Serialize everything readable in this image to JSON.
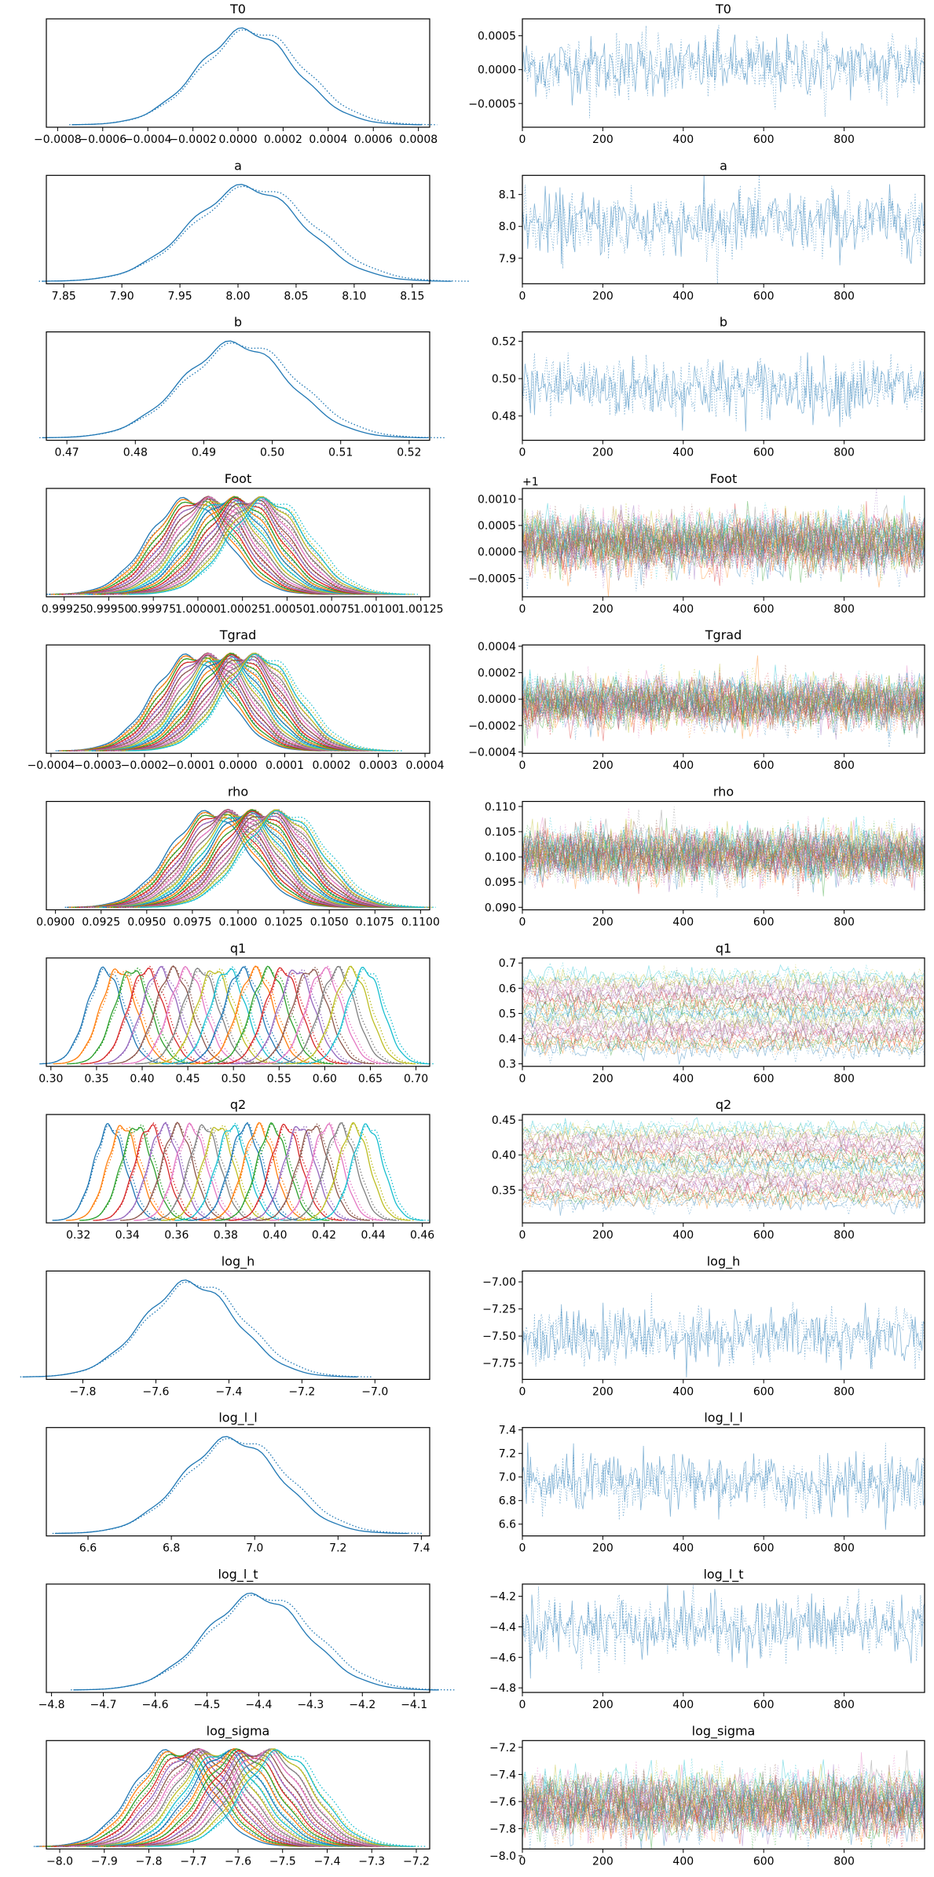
{
  "figure": {
    "type": "trace plot",
    "layout": "12 rows x 2 columns; left column: posterior density (KDE) per variable, right column: sampling trace per variable",
    "colors": [
      "#1f77b4",
      "#ff7f0e",
      "#2ca02c",
      "#d62728",
      "#9467bd",
      "#8c564b",
      "#e377c2",
      "#7f7f7f",
      "#bcbd22",
      "#17becf"
    ],
    "line_styles": {
      "chain_0": "solid",
      "chain_1": "dotted"
    },
    "trace_x_ticks": [
      "0",
      "200",
      "400",
      "600",
      "800"
    ],
    "trace_x_range": [
      0,
      1000
    ]
  },
  "chart_data": [
    {
      "name": "T0",
      "title": "T0",
      "components": 1,
      "mean": 5e-05,
      "sd": 0.00022,
      "kde": {
        "type": "line",
        "xlim": [
          -0.00085,
          0.00085
        ],
        "x_ticks": [
          "−0.0008",
          "−0.0006",
          "−0.0004",
          "−0.0002",
          "0.0000",
          "0.0002",
          "0.0004",
          "0.0006",
          "0.0008"
        ],
        "x_tick_values": [
          -0.0008,
          -0.0006,
          -0.0004,
          -0.0002,
          0,
          0.0002,
          0.0004,
          0.0006,
          0.0008
        ],
        "grid": false
      },
      "trace": {
        "type": "line",
        "ylim": [
          -0.00085,
          0.00075
        ],
        "y_ticks": [
          "0.0005",
          "0.0000",
          "−0.0005"
        ],
        "y_tick_values": [
          0.0005,
          0,
          -0.0005
        ],
        "offset_label": ""
      }
    },
    {
      "name": "a",
      "title": "a",
      "components": 1,
      "mean": 8.01,
      "sd": 0.05,
      "kde": {
        "type": "line",
        "xlim": [
          7.835,
          8.165
        ],
        "x_ticks": [
          "7.85",
          "7.90",
          "7.95",
          "8.00",
          "8.05",
          "8.10",
          "8.15"
        ],
        "x_tick_values": [
          7.85,
          7.9,
          7.95,
          8.0,
          8.05,
          8.1,
          8.15
        ],
        "grid": false
      },
      "trace": {
        "type": "line",
        "ylim": [
          7.82,
          8.16
        ],
        "y_ticks": [
          "8.1",
          "8.0",
          "7.9"
        ],
        "y_tick_values": [
          8.1,
          8.0,
          7.9
        ],
        "offset_label": ""
      }
    },
    {
      "name": "b",
      "title": "b",
      "components": 1,
      "mean": 0.495,
      "sd": 0.008,
      "kde": {
        "type": "line",
        "xlim": [
          0.467,
          0.523
        ],
        "x_ticks": [
          "0.47",
          "0.48",
          "0.49",
          "0.50",
          "0.51",
          "0.52"
        ],
        "x_tick_values": [
          0.47,
          0.48,
          0.49,
          0.5,
          0.51,
          0.52
        ],
        "grid": false
      },
      "trace": {
        "type": "line",
        "ylim": [
          0.467,
          0.525
        ],
        "y_ticks": [
          "0.52",
          "0.50",
          "0.48"
        ],
        "y_tick_values": [
          0.52,
          0.5,
          0.48
        ],
        "offset_label": ""
      }
    },
    {
      "name": "Foot",
      "title": "Foot",
      "components": 20,
      "mean_min": 0.99995,
      "mean_max": 1.0004,
      "sd": 0.00022,
      "kde": {
        "type": "line",
        "xlim": [
          0.99915,
          1.0013
        ],
        "x_ticks": [
          "0.99925",
          "0.99950",
          "0.99975",
          "1.00000",
          "1.00025",
          "1.00050",
          "1.00075",
          "1.00100",
          "1.00125"
        ],
        "x_tick_values": [
          0.99925,
          0.9995,
          0.99975,
          1.0,
          1.00025,
          1.0005,
          1.00075,
          1.001,
          1.00125
        ],
        "grid": false
      },
      "trace": {
        "type": "line",
        "ylim": [
          -0.00085,
          0.0012
        ],
        "y_ticks": [
          "0.0010",
          "0.0005",
          "0.0000",
          "−0.0005"
        ],
        "y_tick_values": [
          0.001,
          0.0005,
          0,
          -0.0005
        ],
        "offset_label": "+1",
        "value_offset": 1
      }
    },
    {
      "name": "Tgrad",
      "title": "Tgrad",
      "components": 20,
      "mean_min": -0.0001,
      "mean_max": 5e-05,
      "sd": 8e-05,
      "kde": {
        "type": "line",
        "xlim": [
          -0.00041,
          0.00041
        ],
        "x_ticks": [
          "−0.0004",
          "−0.0003",
          "−0.0002",
          "−0.0001",
          "0.0000",
          "0.0001",
          "0.0002",
          "0.0003",
          "0.0004"
        ],
        "x_tick_values": [
          -0.0004,
          -0.0003,
          -0.0002,
          -0.0001,
          0,
          0.0001,
          0.0002,
          0.0003,
          0.0004
        ],
        "grid": false
      },
      "trace": {
        "type": "line",
        "ylim": [
          -0.00041,
          0.00041
        ],
        "y_ticks": [
          "0.0004",
          "0.0002",
          "0.0000",
          "−0.0002",
          "−0.0004"
        ],
        "y_tick_values": [
          0.0004,
          0.0002,
          0,
          -0.0002,
          -0.0004
        ],
        "offset_label": ""
      }
    },
    {
      "name": "rho",
      "title": "rho",
      "components": 20,
      "mean_min": 0.0985,
      "mean_max": 0.1025,
      "sd": 0.0022,
      "kde": {
        "type": "line",
        "xlim": [
          0.0895,
          0.1105
        ],
        "x_ticks": [
          "0.0900",
          "0.0925",
          "0.0950",
          "0.0975",
          "0.1000",
          "0.1025",
          "0.1050",
          "0.1075",
          "0.1100"
        ],
        "x_tick_values": [
          0.09,
          0.0925,
          0.095,
          0.0975,
          0.1,
          0.1025,
          0.105,
          0.1075,
          0.11
        ],
        "grid": false
      },
      "trace": {
        "type": "line",
        "ylim": [
          0.0895,
          0.111
        ],
        "y_ticks": [
          "0.110",
          "0.105",
          "0.100",
          "0.095",
          "0.090"
        ],
        "y_tick_values": [
          0.11,
          0.105,
          0.1,
          0.095,
          0.09
        ],
        "offset_label": ""
      }
    },
    {
      "name": "q1",
      "title": "q1",
      "components": 20,
      "mean_min": 0.36,
      "mean_max": 0.645,
      "sd": 0.02,
      "kde": {
        "type": "line",
        "xlim": [
          0.295,
          0.715
        ],
        "x_ticks": [
          "0.30",
          "0.35",
          "0.40",
          "0.45",
          "0.50",
          "0.55",
          "0.60",
          "0.65",
          "0.70"
        ],
        "x_tick_values": [
          0.3,
          0.35,
          0.4,
          0.45,
          0.5,
          0.55,
          0.6,
          0.65,
          0.7
        ],
        "grid": false
      },
      "trace": {
        "type": "line",
        "ylim": [
          0.29,
          0.72
        ],
        "y_ticks": [
          "0.7",
          "0.6",
          "0.5",
          "0.4",
          "0.3"
        ],
        "y_tick_values": [
          0.7,
          0.6,
          0.5,
          0.4,
          0.3
        ],
        "offset_label": ""
      }
    },
    {
      "name": "q2",
      "title": "q2",
      "components": 20,
      "mean_min": 0.333,
      "mean_max": 0.438,
      "sd": 0.0065,
      "kde": {
        "type": "line",
        "xlim": [
          0.307,
          0.463
        ],
        "x_ticks": [
          "0.32",
          "0.34",
          "0.36",
          "0.38",
          "0.40",
          "0.42",
          "0.44",
          "0.46"
        ],
        "x_tick_values": [
          0.32,
          0.34,
          0.36,
          0.38,
          0.4,
          0.42,
          0.44,
          0.46
        ],
        "grid": false
      },
      "trace": {
        "type": "line",
        "ylim": [
          0.303,
          0.458
        ],
        "y_ticks": [
          "0.45",
          "0.40",
          "0.35"
        ],
        "y_tick_values": [
          0.45,
          0.4,
          0.35
        ],
        "offset_label": ""
      }
    },
    {
      "name": "log_h",
      "title": "log_h",
      "components": 1,
      "mean": -7.5,
      "sd": 0.13,
      "kde": {
        "type": "line",
        "xlim": [
          -7.9,
          -6.85
        ],
        "x_ticks": [
          "−7.8",
          "−7.6",
          "−7.4",
          "−7.2",
          "−7.0"
        ],
        "x_tick_values": [
          -7.8,
          -7.6,
          -7.4,
          -7.2,
          -7.0
        ],
        "grid": false
      },
      "trace": {
        "type": "line",
        "ylim": [
          -7.9,
          -6.9
        ],
        "y_ticks": [
          "−7.00",
          "−7.25",
          "−7.50",
          "−7.75"
        ],
        "y_tick_values": [
          -7.0,
          -7.25,
          -7.5,
          -7.75
        ],
        "offset_label": ""
      }
    },
    {
      "name": "log_l_l",
      "title": "log_l_l",
      "components": 1,
      "mean": 6.95,
      "sd": 0.12,
      "kde": {
        "type": "line",
        "xlim": [
          6.5,
          7.42
        ],
        "x_ticks": [
          "6.6",
          "6.8",
          "7.0",
          "7.2",
          "7.4"
        ],
        "x_tick_values": [
          6.6,
          6.8,
          7.0,
          7.2,
          7.4
        ],
        "grid": false
      },
      "trace": {
        "type": "line",
        "ylim": [
          6.5,
          7.42
        ],
        "y_ticks": [
          "7.4",
          "7.2",
          "7.0",
          "6.8",
          "6.6"
        ],
        "y_tick_values": [
          7.4,
          7.2,
          7.0,
          6.8,
          6.6
        ],
        "offset_label": ""
      }
    },
    {
      "name": "log_l_t",
      "title": "log_l_t",
      "components": 1,
      "mean": -4.4,
      "sd": 0.1,
      "kde": {
        "type": "line",
        "xlim": [
          -4.81,
          -4.07
        ],
        "x_ticks": [
          "−4.8",
          "−4.7",
          "−4.6",
          "−4.5",
          "−4.4",
          "−4.3",
          "−4.2",
          "−4.1"
        ],
        "x_tick_values": [
          -4.8,
          -4.7,
          -4.6,
          -4.5,
          -4.4,
          -4.3,
          -4.2,
          -4.1
        ],
        "grid": false
      },
      "trace": {
        "type": "line",
        "ylim": [
          -4.83,
          -4.12
        ],
        "y_ticks": [
          "−4.2",
          "−4.4",
          "−4.6",
          "−4.8"
        ],
        "y_tick_values": [
          -4.2,
          -4.4,
          -4.6,
          -4.8
        ],
        "offset_label": ""
      }
    },
    {
      "name": "log_sigma",
      "title": "log_sigma",
      "components": 20,
      "mean_min": -7.75,
      "mean_max": -7.5,
      "sd": 0.085,
      "kde": {
        "type": "line",
        "xlim": [
          -8.03,
          -7.17
        ],
        "x_ticks": [
          "−8.0",
          "−7.9",
          "−7.8",
          "−7.7",
          "−7.6",
          "−7.5",
          "−7.4",
          "−7.3",
          "−7.2"
        ],
        "x_tick_values": [
          -8.0,
          -7.9,
          -7.8,
          -7.7,
          -7.6,
          -7.5,
          -7.4,
          -7.3,
          -7.2
        ],
        "grid": false
      },
      "trace": {
        "type": "line",
        "ylim": [
          -7.95,
          -7.15
        ],
        "y_ticks": [
          "−7.2",
          "−7.4",
          "−7.6",
          "−7.8",
          "−8.0"
        ],
        "y_tick_values": [
          -7.2,
          -7.4,
          -7.6,
          -7.8,
          -8.0
        ],
        "offset_label": ""
      }
    }
  ]
}
